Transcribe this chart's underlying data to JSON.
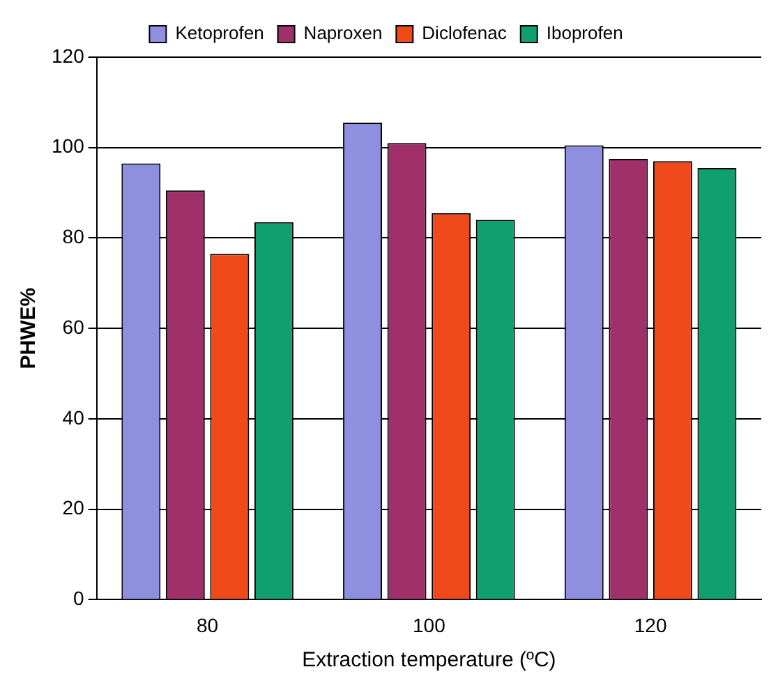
{
  "chart_data": {
    "type": "bar",
    "xlabel": "Extraction temperature (ºC)",
    "ylabel": "PHWE%",
    "categories": [
      "80",
      "100",
      "120"
    ],
    "series": [
      {
        "name": "Ketoprofen",
        "color": "#8f8fe0",
        "values": [
          96.5,
          105.5,
          100.5
        ]
      },
      {
        "name": "Naproxen",
        "color": "#a0306a",
        "values": [
          90.5,
          101,
          97.5
        ]
      },
      {
        "name": "Diclofenac",
        "color": "#f04a1a",
        "values": [
          76.5,
          85.5,
          97
        ]
      },
      {
        "name": "Iboprofen",
        "color": "#10a070",
        "values": [
          83.5,
          84,
          95.5
        ]
      }
    ],
    "ylim": [
      0,
      120
    ],
    "yticks": [
      0,
      20,
      40,
      60,
      80,
      100,
      120
    ],
    "grid": "y",
    "legend": "top"
  }
}
